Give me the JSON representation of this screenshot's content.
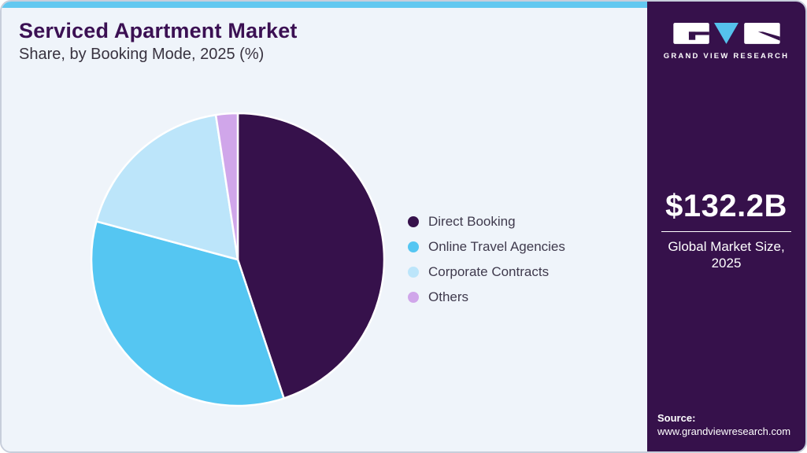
{
  "header": {
    "title": "Serviced Apartment Market",
    "subtitle": "Share, by Booking Mode, 2025 (%)"
  },
  "chart_data": {
    "type": "pie",
    "title": "Serviced Apartment Market Share, by Booking Mode, 2025 (%)",
    "categories": [
      "Direct Booking",
      "Online Travel Agencies",
      "Corporate Contracts",
      "Others"
    ],
    "values": [
      44.9,
      34.3,
      18.4,
      2.4
    ],
    "unit": "%",
    "colors": [
      "#36114b",
      "#55c6f2",
      "#bce5fa",
      "#d0a6ea"
    ],
    "legend_position": "right",
    "start_angle_deg": 0,
    "direction": "clockwise",
    "slice_gap_stroke": "#ffffff"
  },
  "sidebar": {
    "logo_icon": "gvr-logo-icon",
    "logo_text": "GRAND VIEW RESEARCH",
    "market_size_value": "$132.2B",
    "market_size_label": "Global Market Size, 2025",
    "source_label": "Source:",
    "source_url": "www.grandviewresearch.com"
  },
  "colors": {
    "accent_bar": "#62c8f0",
    "sidebar_bg": "#36114b",
    "title_text": "#3b1053",
    "main_bg": "#eff4fa",
    "logo_triangle": "#55c2ec"
  }
}
